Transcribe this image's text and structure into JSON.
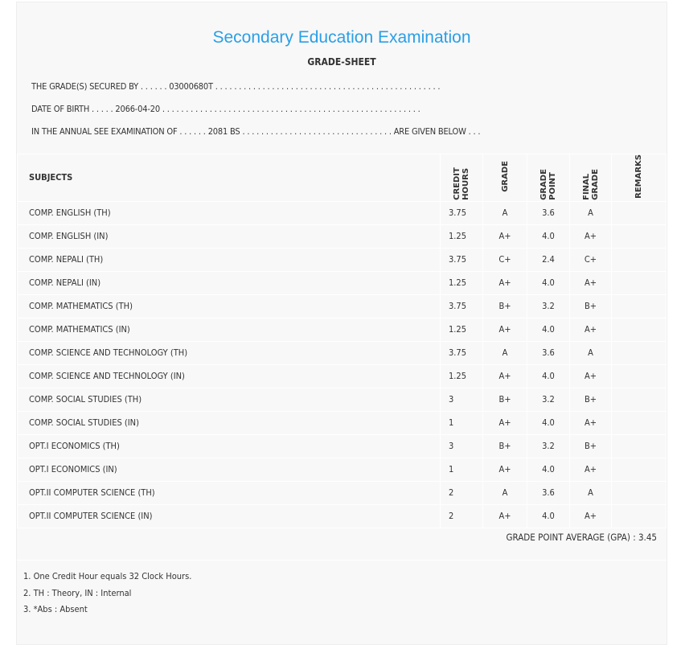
{
  "title": "Secondary Education Examination",
  "subtitle": "GRADE-SHEET",
  "info": {
    "secured_by": "THE GRADE(S) SECURED BY . . . . . . 03000680T . . . . . . . . . . . . . . . . . . . . . . . . . . . . . . . . . . . . . . . . . . . . . . . .",
    "dob": "DATE OF BIRTH . . . . . 2066-04-20 . . . . . . . . . . . . . . . . . . . . . . . . . . . . . . . . . . . . . . . . . . . . . . . . . . . . . . .",
    "exam": "IN THE ANNUAL SEE EXAMINATION OF . . . . . . 2081 BS . . . . . . . . . . . . . . . . . . . . . . . . . . . . . . . . ARE GIVEN BELOW . . ."
  },
  "columns": [
    "SUBJECTS",
    "CREDIT HOURS",
    "GRADE",
    "GRADE POINT",
    "FINAL GRADE",
    "REMARKS"
  ],
  "rows": [
    [
      "COMP. ENGLISH (TH)",
      "3.75",
      "A",
      "3.6",
      "A"
    ],
    [
      "COMP. ENGLISH (IN)",
      "1.25",
      "A+",
      "4.0",
      "A+"
    ],
    [
      "COMP. NEPALI (TH)",
      "3.75",
      "C+",
      "2.4",
      "C+"
    ],
    [
      "COMP. NEPALI (IN)",
      "1.25",
      "A+",
      "4.0",
      "A+"
    ],
    [
      "COMP. MATHEMATICS (TH)",
      "3.75",
      "B+",
      "3.2",
      "B+"
    ],
    [
      "COMP. MATHEMATICS (IN)",
      "1.25",
      "A+",
      "4.0",
      "A+"
    ],
    [
      "COMP. SCIENCE AND TECHNOLOGY (TH)",
      "3.75",
      "A",
      "3.6",
      "A"
    ],
    [
      "COMP. SCIENCE AND TECHNOLOGY (IN)",
      "1.25",
      "A+",
      "4.0",
      "A+"
    ],
    [
      "COMP. SOCIAL STUDIES (TH)",
      "3",
      "B+",
      "3.2",
      "B+"
    ],
    [
      "COMP. SOCIAL STUDIES (IN)",
      "1",
      "A+",
      "4.0",
      "A+"
    ],
    [
      "OPT.I ECONOMICS (TH)",
      "3",
      "B+",
      "3.2",
      "B+"
    ],
    [
      "OPT.I ECONOMICS (IN)",
      "1",
      "A+",
      "4.0",
      "A+"
    ],
    [
      "OPT.II COMPUTER SCIENCE (TH)",
      "2",
      "A",
      "3.6",
      "A"
    ],
    [
      "OPT.II COMPUTER SCIENCE (IN)",
      "2",
      "A+",
      "4.0",
      "A+"
    ]
  ],
  "gpa": "GRADE POINT AVERAGE (GPA) : 3.45",
  "notes": [
    "1. One Credit Hour equals 32 Clock Hours.",
    "2. TH : Theory, IN : Internal",
    "3. *Abs : Absent"
  ]
}
